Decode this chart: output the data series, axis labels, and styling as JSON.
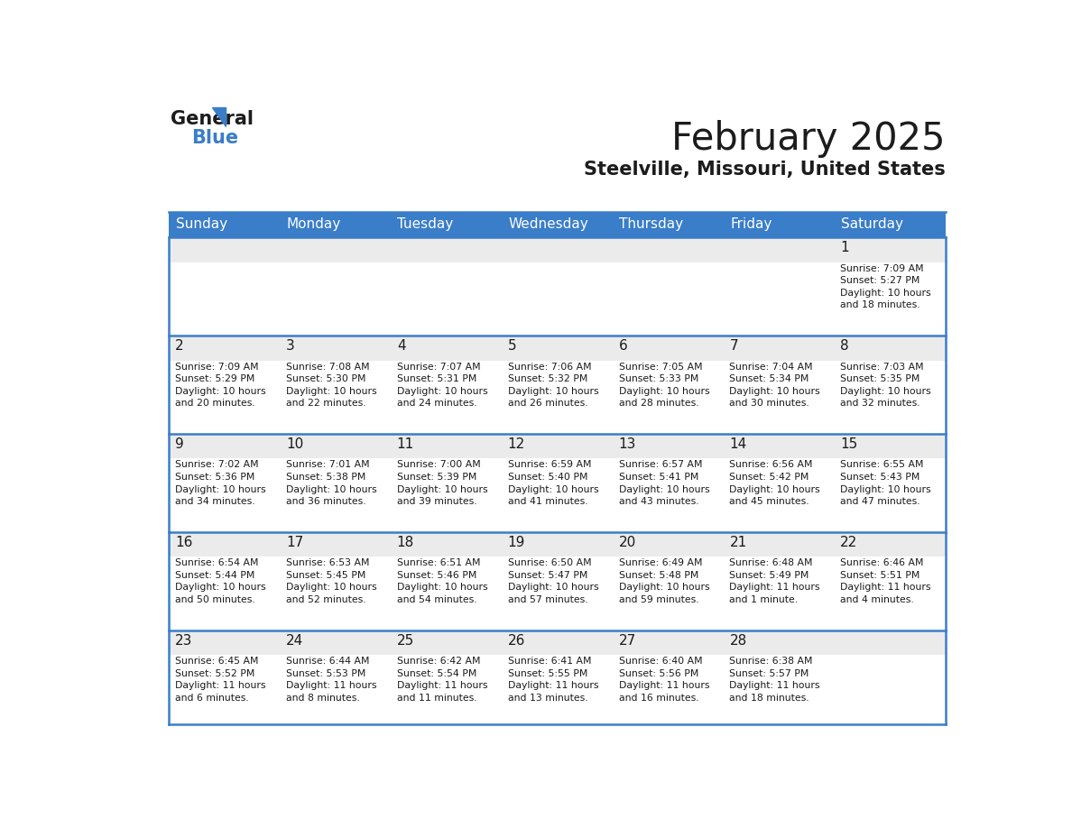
{
  "title": "February 2025",
  "subtitle": "Steelville, Missouri, United States",
  "header_color": "#3A7DC9",
  "header_text_color": "#FFFFFF",
  "cell_top_bg": "#EBEBEB",
  "cell_body_bg": "#FFFFFF",
  "border_color": "#3A7DC9",
  "text_color": "#1a1a1a",
  "day_headers": [
    "Sunday",
    "Monday",
    "Tuesday",
    "Wednesday",
    "Thursday",
    "Friday",
    "Saturday"
  ],
  "days": [
    {
      "day": 1,
      "col": 6,
      "row": 0,
      "sunrise": "7:09 AM",
      "sunset": "5:27 PM",
      "daylight": "10 hours\nand 18 minutes."
    },
    {
      "day": 2,
      "col": 0,
      "row": 1,
      "sunrise": "7:09 AM",
      "sunset": "5:29 PM",
      "daylight": "10 hours\nand 20 minutes."
    },
    {
      "day": 3,
      "col": 1,
      "row": 1,
      "sunrise": "7:08 AM",
      "sunset": "5:30 PM",
      "daylight": "10 hours\nand 22 minutes."
    },
    {
      "day": 4,
      "col": 2,
      "row": 1,
      "sunrise": "7:07 AM",
      "sunset": "5:31 PM",
      "daylight": "10 hours\nand 24 minutes."
    },
    {
      "day": 5,
      "col": 3,
      "row": 1,
      "sunrise": "7:06 AM",
      "sunset": "5:32 PM",
      "daylight": "10 hours\nand 26 minutes."
    },
    {
      "day": 6,
      "col": 4,
      "row": 1,
      "sunrise": "7:05 AM",
      "sunset": "5:33 PM",
      "daylight": "10 hours\nand 28 minutes."
    },
    {
      "day": 7,
      "col": 5,
      "row": 1,
      "sunrise": "7:04 AM",
      "sunset": "5:34 PM",
      "daylight": "10 hours\nand 30 minutes."
    },
    {
      "day": 8,
      "col": 6,
      "row": 1,
      "sunrise": "7:03 AM",
      "sunset": "5:35 PM",
      "daylight": "10 hours\nand 32 minutes."
    },
    {
      "day": 9,
      "col": 0,
      "row": 2,
      "sunrise": "7:02 AM",
      "sunset": "5:36 PM",
      "daylight": "10 hours\nand 34 minutes."
    },
    {
      "day": 10,
      "col": 1,
      "row": 2,
      "sunrise": "7:01 AM",
      "sunset": "5:38 PM",
      "daylight": "10 hours\nand 36 minutes."
    },
    {
      "day": 11,
      "col": 2,
      "row": 2,
      "sunrise": "7:00 AM",
      "sunset": "5:39 PM",
      "daylight": "10 hours\nand 39 minutes."
    },
    {
      "day": 12,
      "col": 3,
      "row": 2,
      "sunrise": "6:59 AM",
      "sunset": "5:40 PM",
      "daylight": "10 hours\nand 41 minutes."
    },
    {
      "day": 13,
      "col": 4,
      "row": 2,
      "sunrise": "6:57 AM",
      "sunset": "5:41 PM",
      "daylight": "10 hours\nand 43 minutes."
    },
    {
      "day": 14,
      "col": 5,
      "row": 2,
      "sunrise": "6:56 AM",
      "sunset": "5:42 PM",
      "daylight": "10 hours\nand 45 minutes."
    },
    {
      "day": 15,
      "col": 6,
      "row": 2,
      "sunrise": "6:55 AM",
      "sunset": "5:43 PM",
      "daylight": "10 hours\nand 47 minutes."
    },
    {
      "day": 16,
      "col": 0,
      "row": 3,
      "sunrise": "6:54 AM",
      "sunset": "5:44 PM",
      "daylight": "10 hours\nand 50 minutes."
    },
    {
      "day": 17,
      "col": 1,
      "row": 3,
      "sunrise": "6:53 AM",
      "sunset": "5:45 PM",
      "daylight": "10 hours\nand 52 minutes."
    },
    {
      "day": 18,
      "col": 2,
      "row": 3,
      "sunrise": "6:51 AM",
      "sunset": "5:46 PM",
      "daylight": "10 hours\nand 54 minutes."
    },
    {
      "day": 19,
      "col": 3,
      "row": 3,
      "sunrise": "6:50 AM",
      "sunset": "5:47 PM",
      "daylight": "10 hours\nand 57 minutes."
    },
    {
      "day": 20,
      "col": 4,
      "row": 3,
      "sunrise": "6:49 AM",
      "sunset": "5:48 PM",
      "daylight": "10 hours\nand 59 minutes."
    },
    {
      "day": 21,
      "col": 5,
      "row": 3,
      "sunrise": "6:48 AM",
      "sunset": "5:49 PM",
      "daylight": "11 hours\nand 1 minute."
    },
    {
      "day": 22,
      "col": 6,
      "row": 3,
      "sunrise": "6:46 AM",
      "sunset": "5:51 PM",
      "daylight": "11 hours\nand 4 minutes."
    },
    {
      "day": 23,
      "col": 0,
      "row": 4,
      "sunrise": "6:45 AM",
      "sunset": "5:52 PM",
      "daylight": "11 hours\nand 6 minutes."
    },
    {
      "day": 24,
      "col": 1,
      "row": 4,
      "sunrise": "6:44 AM",
      "sunset": "5:53 PM",
      "daylight": "11 hours\nand 8 minutes."
    },
    {
      "day": 25,
      "col": 2,
      "row": 4,
      "sunrise": "6:42 AM",
      "sunset": "5:54 PM",
      "daylight": "11 hours\nand 11 minutes."
    },
    {
      "day": 26,
      "col": 3,
      "row": 4,
      "sunrise": "6:41 AM",
      "sunset": "5:55 PM",
      "daylight": "11 hours\nand 13 minutes."
    },
    {
      "day": 27,
      "col": 4,
      "row": 4,
      "sunrise": "6:40 AM",
      "sunset": "5:56 PM",
      "daylight": "11 hours\nand 16 minutes."
    },
    {
      "day": 28,
      "col": 5,
      "row": 4,
      "sunrise": "6:38 AM",
      "sunset": "5:57 PM",
      "daylight": "11 hours\nand 18 minutes."
    }
  ],
  "num_rows": 5,
  "num_cols": 7,
  "fig_width": 11.88,
  "fig_height": 9.18,
  "dpi": 100
}
